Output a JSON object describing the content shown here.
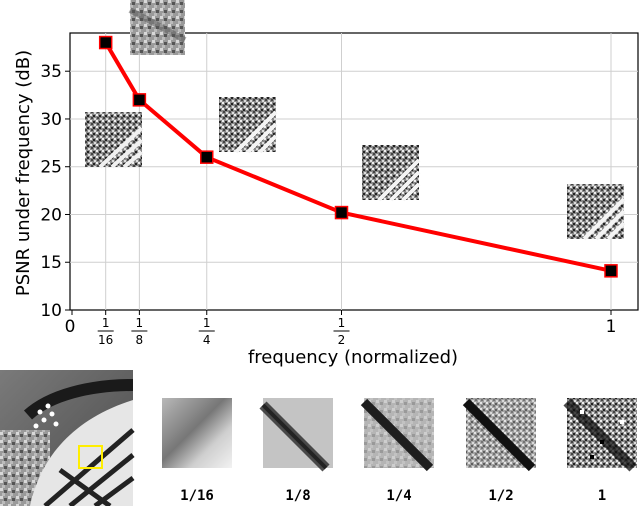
{
  "chart_data": {
    "type": "line",
    "xlabel": "frequency (normalized)",
    "ylabel": "PSNR under frequency (dB)",
    "xlim": [
      0,
      1.04
    ],
    "ylim": [
      10,
      39
    ],
    "y_ticks": [
      "10",
      "15",
      "20",
      "25",
      "30",
      "35"
    ],
    "x_ticks": [
      {
        "value": 0,
        "label": "0"
      },
      {
        "value": 0.0625,
        "num": "1",
        "den": "16"
      },
      {
        "value": 0.125,
        "num": "1",
        "den": "8"
      },
      {
        "value": 0.25,
        "num": "1",
        "den": "4"
      },
      {
        "value": 0.5,
        "num": "1",
        "den": "2"
      },
      {
        "value": 1,
        "label": "1"
      }
    ],
    "grid": true,
    "series": [
      {
        "x": [
          0.0625,
          0.125,
          0.25,
          0.5,
          1
        ],
        "y": [
          38,
          32,
          26,
          20.2,
          14.1
        ],
        "color": "#ff0000",
        "marker_color": "#000000"
      }
    ]
  },
  "patches": {
    "labels": [
      "1/16",
      "1/8",
      "1/4",
      "1/2",
      "1"
    ]
  },
  "colors": {
    "highlight_box": "#ffee00",
    "line": "#ff0000"
  }
}
